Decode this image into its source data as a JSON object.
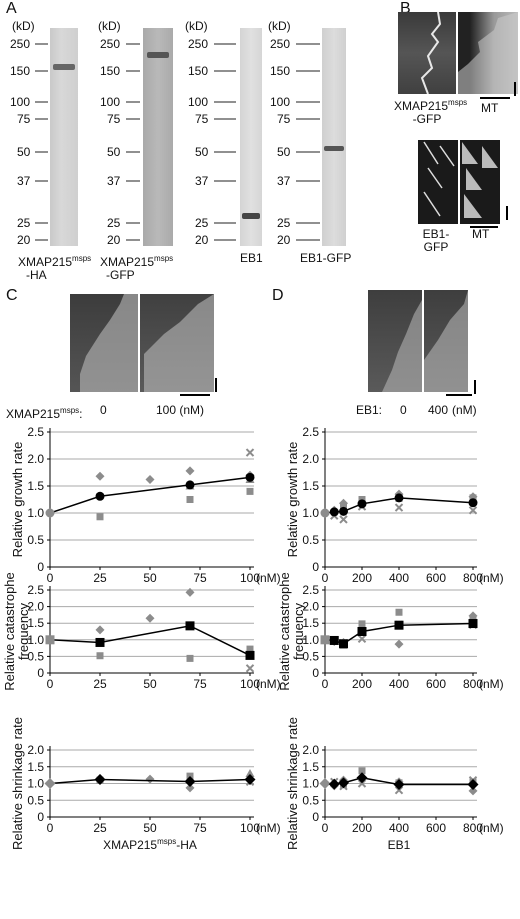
{
  "panels": {
    "A": "A",
    "B": "B",
    "C": "C",
    "D": "D"
  },
  "gels": {
    "kd_label": "(kD)",
    "markers": [
      "250",
      "150",
      "100",
      "75",
      "50",
      "37",
      "25",
      "20"
    ],
    "lanes": [
      {
        "line1": "XMAP215",
        "sup": "msps",
        "line2": "-HA"
      },
      {
        "line1": "XMAP215",
        "sup": "msps",
        "line2": "-GFP"
      },
      {
        "line1": "EB1",
        "sup": "",
        "line2": ""
      },
      {
        "line1": "EB1-GFP",
        "sup": "",
        "line2": ""
      }
    ]
  },
  "panel_b": {
    "top_label_1": "XMAP215",
    "top_label_sup": "msps",
    "top_label_2": "-GFP",
    "top_mt": "MT",
    "bottom_label_1": "EB1-",
    "bottom_label_2": "GFP",
    "bottom_mt": "MT"
  },
  "panel_c": {
    "condition_label": "XMAP215",
    "condition_sup": "msps",
    "condition_suffix": ":",
    "conc_0": "0",
    "conc_1": "100 (nM)"
  },
  "panel_d": {
    "condition_label": "EB1:",
    "conc_0": "0",
    "conc_1": "400",
    "unit": "(nM)"
  },
  "colors": {
    "mean": "#000000",
    "replicate": "#8c8c8c",
    "gridline": "#aaaaaa"
  },
  "chart_data": [
    {
      "type": "scatter",
      "panel": "C",
      "ylabel": "Relative growth rate",
      "xunit": "(nM)",
      "xlim": [
        0,
        100
      ],
      "ylim": [
        0,
        2.5
      ],
      "xticks": [
        "0",
        "25",
        "50",
        "75",
        "100"
      ],
      "yticks": [
        "0",
        "0.5",
        "1.0",
        "1.5",
        "2.0",
        "2.5"
      ],
      "mean": {
        "marker": "circle",
        "x": [
          0,
          25,
          70,
          100
        ],
        "y": [
          1.0,
          1.31,
          1.52,
          1.66
        ]
      },
      "replicates": [
        {
          "marker": "diamond",
          "x": [
            25,
            50,
            70,
            100
          ],
          "y": [
            1.68,
            1.62,
            1.78,
            1.7
          ]
        },
        {
          "marker": "square",
          "x": [
            25,
            70,
            100
          ],
          "y": [
            0.93,
            1.25,
            1.4
          ]
        },
        {
          "marker": "triangle",
          "x": [
            70,
            100
          ],
          "y": [
            1.5,
            1.62
          ]
        },
        {
          "marker": "cross",
          "x": [
            100
          ],
          "y": [
            2.12
          ]
        }
      ]
    },
    {
      "type": "scatter",
      "panel": "C",
      "ylabel": "Relative catastrophe frequency",
      "xunit": "(nM)",
      "xlim": [
        0,
        100
      ],
      "ylim": [
        0,
        2.5
      ],
      "xticks": [
        "0",
        "25",
        "50",
        "75",
        "100"
      ],
      "yticks": [
        "0",
        "0.5",
        "1.0",
        "1.5",
        "2.0",
        "2.5"
      ],
      "mean": {
        "marker": "square",
        "x": [
          0,
          25,
          70,
          100
        ],
        "y": [
          1.0,
          0.92,
          1.42,
          0.53
        ]
      },
      "replicates": [
        {
          "marker": "diamond",
          "x": [
            25,
            50,
            70
          ],
          "y": [
            1.3,
            1.65,
            2.43
          ]
        },
        {
          "marker": "square",
          "x": [
            25,
            70,
            100
          ],
          "y": [
            0.52,
            0.44,
            0.72
          ]
        },
        {
          "marker": "cross",
          "x": [
            100
          ],
          "y": [
            0.14
          ]
        }
      ]
    },
    {
      "type": "scatter",
      "panel": "C",
      "ylabel": "Relative shrinkage rate",
      "xunit": "(nM)",
      "xlabel": "XMAP215",
      "xlabel_sup": "msps",
      "xlabel_suffix": "-HA",
      "xlim": [
        0,
        100
      ],
      "ylim": [
        0,
        2.0
      ],
      "xticks": [
        "0",
        "25",
        "50",
        "75",
        "100"
      ],
      "yticks": [
        "0",
        "0.5",
        "1.0",
        "1.5",
        "2.0"
      ],
      "mean": {
        "marker": "diamond",
        "x": [
          0,
          25,
          70,
          100
        ],
        "y": [
          1.0,
          1.12,
          1.06,
          1.12
        ]
      },
      "replicates": [
        {
          "marker": "diamond",
          "x": [
            25,
            50,
            70
          ],
          "y": [
            1.15,
            1.13,
            0.87
          ]
        },
        {
          "marker": "square",
          "x": [
            25,
            70
          ],
          "y": [
            1.1,
            1.22
          ]
        },
        {
          "marker": "triangle",
          "x": [
            100
          ],
          "y": [
            1.3
          ]
        },
        {
          "marker": "cross",
          "x": [
            100
          ],
          "y": [
            1.05
          ]
        }
      ]
    },
    {
      "type": "scatter",
      "panel": "D",
      "ylabel": "Relative growth rate",
      "xunit": "(nM)",
      "xlim": [
        0,
        800
      ],
      "ylim": [
        0,
        2.5
      ],
      "xticks": [
        "0",
        "200",
        "400",
        "600",
        "800"
      ],
      "yticks": [
        "0",
        "0.5",
        "1.0",
        "1.5",
        "2.0",
        "2.5"
      ],
      "mean": {
        "marker": "circle",
        "x": [
          0,
          50,
          100,
          200,
          400,
          800
        ],
        "y": [
          1.0,
          1.02,
          1.03,
          1.17,
          1.28,
          1.19
        ]
      },
      "replicates": [
        {
          "marker": "diamond",
          "x": [
            50,
            100,
            200,
            400,
            800
          ],
          "y": [
            1.05,
            1.18,
            1.2,
            1.35,
            1.3
          ]
        },
        {
          "marker": "square",
          "x": [
            100,
            200,
            400,
            800
          ],
          "y": [
            1.1,
            1.25,
            1.27,
            1.28
          ]
        },
        {
          "marker": "cross",
          "x": [
            50,
            100,
            200,
            400,
            800
          ],
          "y": [
            0.95,
            0.88,
            1.12,
            1.1,
            1.05
          ]
        }
      ]
    },
    {
      "type": "scatter",
      "panel": "D",
      "ylabel": "Relative catastrophe frequency",
      "xunit": "(nM)",
      "xlim": [
        0,
        800
      ],
      "ylim": [
        0,
        2.5
      ],
      "xticks": [
        "0",
        "200",
        "400",
        "600",
        "800"
      ],
      "yticks": [
        "0",
        "0.5",
        "1.0",
        "1.5",
        "2.0",
        "2.5"
      ],
      "mean": {
        "marker": "square",
        "x": [
          0,
          50,
          100,
          200,
          400,
          800
        ],
        "y": [
          1.0,
          0.98,
          0.88,
          1.25,
          1.44,
          1.49
        ]
      },
      "replicates": [
        {
          "marker": "diamond",
          "x": [
            50,
            100,
            200,
            400,
            800
          ],
          "y": [
            0.95,
            0.92,
            1.3,
            0.87,
            1.72
          ]
        },
        {
          "marker": "square",
          "x": [
            100,
            200,
            400,
            800
          ],
          "y": [
            0.84,
            1.48,
            1.83,
            1.62
          ]
        },
        {
          "marker": "cross",
          "x": [
            50,
            100,
            200,
            400,
            800
          ],
          "y": [
            0.98,
            0.9,
            1.03,
            1.45,
            1.45
          ]
        }
      ]
    },
    {
      "type": "scatter",
      "panel": "D",
      "ylabel": "Relative shrinkage rate",
      "xunit": "(nM)",
      "xlabel": "EB1",
      "xlim": [
        0,
        800
      ],
      "ylim": [
        0,
        2.0
      ],
      "xticks": [
        "0",
        "200",
        "400",
        "600",
        "800"
      ],
      "yticks": [
        "0",
        "0.5",
        "1.0",
        "1.5",
        "2.0"
      ],
      "mean": {
        "marker": "diamond",
        "x": [
          0,
          50,
          100,
          200,
          400,
          800
        ],
        "y": [
          1.0,
          0.98,
          1.02,
          1.17,
          0.97,
          0.97
        ]
      },
      "replicates": [
        {
          "marker": "diamond",
          "x": [
            50,
            100,
            200,
            400,
            800
          ],
          "y": [
            0.93,
            1.1,
            1.15,
            1.05,
            0.78
          ]
        },
        {
          "marker": "square",
          "x": [
            100,
            200,
            400,
            800
          ],
          "y": [
            0.98,
            1.38,
            1.02,
            1.05
          ]
        },
        {
          "marker": "cross",
          "x": [
            50,
            100,
            200,
            400,
            800
          ],
          "y": [
            1.05,
            0.92,
            1.0,
            0.8,
            1.1
          ]
        }
      ]
    }
  ]
}
